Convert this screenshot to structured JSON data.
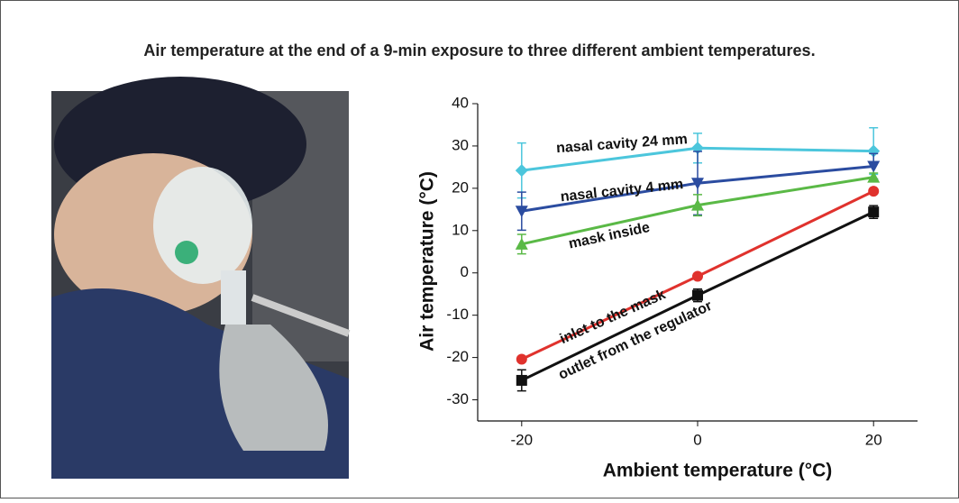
{
  "chart_data": {
    "type": "line",
    "title": "Air temperature at the end of a 9-min exposure to three different ambient temperatures.",
    "x_label": "Ambient temperature (°C)",
    "y_label": "Air temperature (°C)",
    "x": [
      -20,
      0,
      20
    ],
    "xlim": [
      -25,
      25
    ],
    "xticks": [
      -20,
      0,
      20
    ],
    "ylim": [
      -35,
      40
    ],
    "yticks": [
      40,
      30,
      20,
      10,
      0,
      -10,
      -20,
      -30
    ],
    "series": [
      {
        "name": "nasal cavity 24 mm",
        "color": "#4cc6dc",
        "marker": "diamond",
        "values": [
          24.2,
          29.5,
          28.8
        ],
        "errors": [
          6.5,
          3.5,
          5.5
        ]
      },
      {
        "name": "nasal cavity 4 mm",
        "color": "#2b4ca0",
        "marker": "triangle-down",
        "values": [
          14.6,
          21.2,
          25.2
        ],
        "errors": [
          4.5,
          7.5,
          3
        ]
      },
      {
        "name": "mask inside",
        "color": "#5ab946",
        "marker": "triangle-up",
        "values": [
          6.8,
          16,
          22.6
        ],
        "errors": [
          2.3,
          2.5,
          1
        ]
      },
      {
        "name": "inlet to the mask",
        "color": "#e0322d",
        "marker": "circle",
        "values": [
          -20.4,
          -0.8,
          19.3
        ],
        "errors": [
          0.5,
          0.5,
          0.5
        ]
      },
      {
        "name": "outlet from the regulator",
        "color": "#111111",
        "marker": "square",
        "values": [
          -25.4,
          -5.3,
          14.4
        ],
        "errors": [
          2.5,
          1.5,
          1.5
        ]
      }
    ]
  }
}
